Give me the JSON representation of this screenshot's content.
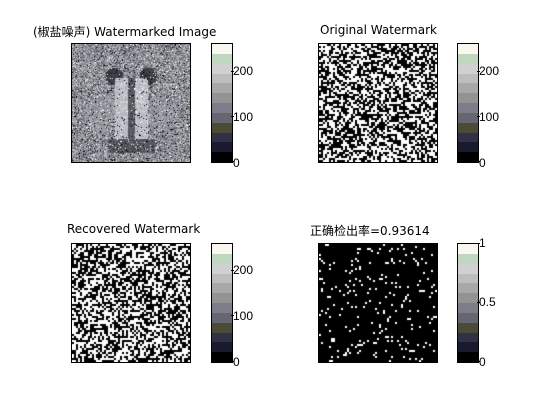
{
  "colormap": [
    "#000000",
    "#1a1a2e",
    "#303046",
    "#4b4b35",
    "#666670",
    "#7d7d8a",
    "#939393",
    "#a8a8a8",
    "#bdbdbd",
    "#d0d0d0",
    "#c0d8c0",
    "#f8f8f0"
  ],
  "panels": [
    {
      "id": "watermarked",
      "title": "(椒盐噪声) Watermarked Image",
      "ticks": [
        "0",
        "100",
        "200"
      ],
      "image": "baboon"
    },
    {
      "id": "original",
      "title": "Original Watermark",
      "ticks": [
        "0",
        "100",
        "200"
      ],
      "image": "noise"
    },
    {
      "id": "recovered",
      "title": "Recovered Watermark",
      "ticks": [
        "0",
        "100",
        "200"
      ],
      "image": "noise"
    },
    {
      "id": "accuracy",
      "title": "正确检出率=0.93614",
      "ticks": [
        "0",
        "0.5",
        "1"
      ],
      "image": "sparse"
    }
  ]
}
